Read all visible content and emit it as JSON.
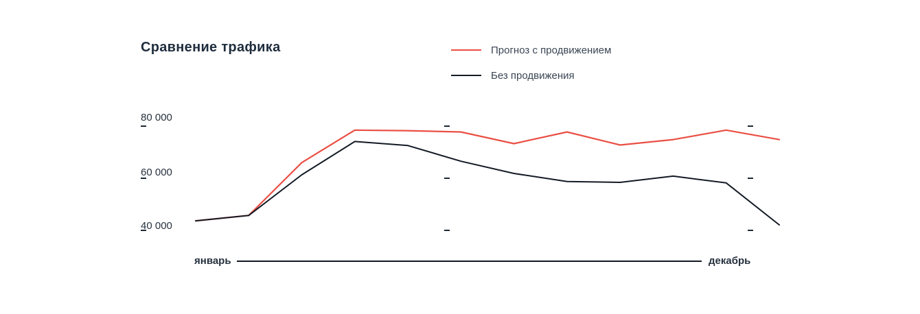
{
  "page": {
    "background": "#ffffff",
    "text_color": "#26313e"
  },
  "title": "Сравнение трафика",
  "chart_data": {
    "type": "line",
    "title": "Сравнение трафика",
    "x_axis": {
      "start_label": "январь",
      "end_label": "декабрь",
      "points": 12
    },
    "y_scale": {
      "min": 40000,
      "max": 80000
    },
    "y_ticks": [
      {
        "value": 80000,
        "label": "80 000"
      },
      {
        "value": 60000,
        "label": "60 000"
      },
      {
        "value": 40000,
        "label": "40 000"
      }
    ],
    "grid": "sparse-dashed",
    "legend_position": "top-center",
    "series": [
      {
        "id": "forecast",
        "name": "Прогноз с продвижением",
        "color": "#ea4f44",
        "values": [
          42000,
          44000,
          63500,
          75500,
          75300,
          74800,
          70500,
          74800,
          70000,
          72000,
          75500,
          72000
        ]
      },
      {
        "id": "baseline",
        "name": "Без продвижения",
        "color": "#121a24",
        "values": [
          42000,
          44000,
          59000,
          71300,
          69800,
          64000,
          59500,
          56500,
          56200,
          58500,
          56000,
          40500
        ]
      }
    ]
  }
}
